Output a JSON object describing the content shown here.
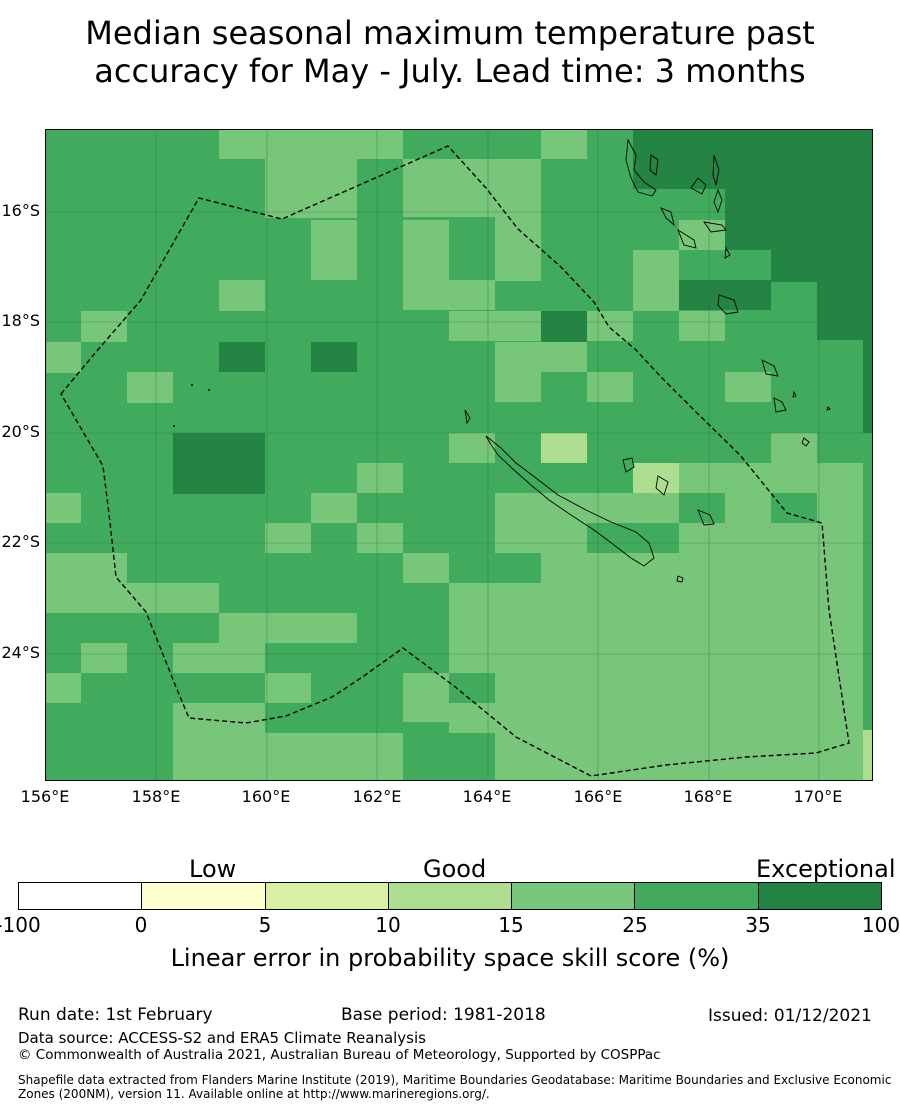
{
  "title_line1": "Median seasonal maximum temperature past",
  "title_line2": "accuracy for May - July. Lead time: 3 months",
  "map": {
    "lat_labels": [
      "16°S",
      "18°S",
      "20°S",
      "22°S",
      "24°S"
    ],
    "lon_labels": [
      "156°E",
      "158°E",
      "160°E",
      "162°E",
      "164°E",
      "166°E",
      "168°E",
      "170°E"
    ],
    "colors": {
      "c25_35": "#41ab5d",
      "c15_25": "#78c679",
      "c10_15": "#addd8e",
      "c35_100": "#238443"
    }
  },
  "legend": {
    "categories": [
      "Low",
      "Good",
      "Exceptional"
    ],
    "ticks": [
      "-100",
      "0",
      "5",
      "10",
      "15",
      "25",
      "35",
      "100"
    ],
    "colors": [
      "#ffffff",
      "#ffffcc",
      "#f7fcb9",
      "#d9f0a3",
      "#addd8e",
      "#78c679",
      "#41ab5d",
      "#238443"
    ],
    "title": "Linear error in probability space skill score (%)"
  },
  "footer": {
    "run_date": "Run date: 1st February",
    "base_period": "Base period: 1981-2018",
    "issued": "Issued: 01/12/2021",
    "data_source": "Data source: ACCESS-S2 and ERA5 Climate Reanalysis",
    "copyright": "© Commonwealth of Australia 2021, Australian Bureau of Meteorology, Supported by COSPPac",
    "shapefile_line1": "Shapefile data extracted from Flanders Marine Institute (2019), Maritime Boundaries Geodatabase: Maritime Boundaries and Exclusive Economic",
    "shapefile_line2": "Zones (200NM), version 11. Available online at http://www.marineregions.org/."
  }
}
